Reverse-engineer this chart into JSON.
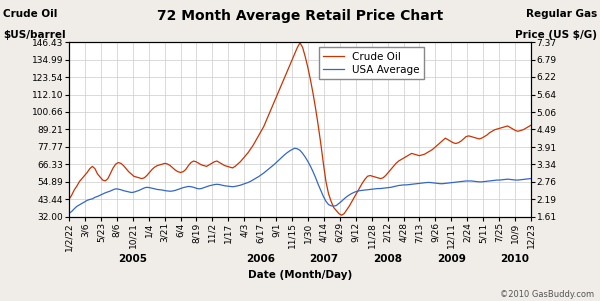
{
  "title": "72 Month Average Retail Price Chart",
  "left_ylabel_line1": "Crude Oil",
  "left_ylabel_line2": "$US/barrel",
  "right_ylabel_line1": "Regular Gas",
  "right_ylabel_line2": "Price (US $/G)",
  "xlabel": "Date (Month/Day)",
  "copyright": "©2010 GasBuddy.com",
  "left_yticks": [
    32.0,
    43.44,
    54.89,
    66.33,
    77.77,
    89.21,
    100.66,
    112.1,
    123.54,
    134.99,
    146.43
  ],
  "right_yticks": [
    1.61,
    2.19,
    2.76,
    3.34,
    3.91,
    4.49,
    5.06,
    5.64,
    6.22,
    6.79,
    7.37
  ],
  "xtick_labels": [
    "1/2/22",
    "3/6",
    "5/23",
    "8/6",
    "10/21",
    "1/4",
    "3/21",
    "6/4",
    "8/19",
    "11/2",
    "1/17",
    "4/3",
    "6/17",
    "9/1",
    "11/15",
    "1/30",
    "4/14",
    "6/29",
    "9/12",
    "11/28",
    "2/12",
    "4/28",
    "7/13",
    "9/26",
    "12/11",
    "2/24",
    "5/11",
    "7/25",
    "10/9",
    "12/23"
  ],
  "year_labels": [
    "2005",
    "2006",
    "2007",
    "2008",
    "2009",
    "2010"
  ],
  "year_tick_ranges": [
    [
      1,
      9
    ],
    [
      9,
      15
    ],
    [
      15,
      19
    ],
    [
      19,
      23
    ],
    [
      23,
      27
    ],
    [
      27,
      30
    ]
  ],
  "crude_color": "#cc3300",
  "gas_color": "#3366cc",
  "bg_color": "#f0ede8",
  "plot_bg": "#ffffff",
  "grid_color": "#cccccc",
  "title_fontsize": 10,
  "axis_label_fontsize": 7.5,
  "tick_fontsize": 6.5,
  "legend_fontsize": 7.5,
  "crude_data": [
    43.5,
    46.0,
    49.5,
    52.0,
    55.0,
    57.0,
    59.0,
    61.0,
    63.5,
    65.0,
    63.5,
    60.0,
    58.0,
    56.0,
    55.5,
    57.0,
    60.5,
    64.0,
    66.5,
    67.5,
    67.0,
    65.5,
    63.5,
    61.5,
    60.0,
    58.5,
    58.0,
    57.5,
    57.0,
    57.5,
    59.0,
    61.0,
    63.0,
    64.5,
    65.5,
    66.0,
    66.5,
    67.0,
    66.5,
    65.5,
    64.0,
    62.5,
    61.5,
    61.0,
    61.5,
    63.0,
    65.5,
    67.5,
    68.5,
    68.0,
    67.0,
    66.0,
    65.5,
    65.0,
    66.0,
    67.0,
    68.0,
    68.5,
    67.5,
    66.5,
    65.5,
    65.0,
    64.5,
    64.0,
    65.0,
    66.5,
    68.0,
    70.0,
    72.0,
    74.0,
    76.5,
    79.0,
    82.0,
    85.0,
    88.0,
    91.0,
    95.0,
    99.0,
    103.0,
    107.0,
    111.0,
    115.0,
    119.0,
    123.0,
    127.0,
    131.0,
    135.0,
    139.0,
    143.0,
    146.0,
    143.0,
    137.0,
    130.0,
    122.0,
    113.0,
    103.0,
    92.0,
    80.0,
    67.0,
    55.0,
    47.0,
    42.0,
    38.0,
    36.0,
    34.0,
    33.0,
    34.0,
    36.5,
    39.0,
    42.0,
    45.0,
    48.0,
    51.0,
    54.0,
    56.5,
    58.5,
    59.0,
    58.5,
    58.0,
    57.5,
    57.0,
    57.5,
    59.0,
    61.0,
    63.0,
    65.0,
    67.0,
    68.5,
    69.5,
    70.5,
    71.5,
    72.5,
    73.5,
    73.0,
    72.5,
    72.0,
    72.5,
    73.0,
    74.0,
    75.0,
    76.0,
    77.5,
    79.0,
    80.5,
    82.0,
    83.5,
    82.5,
    81.5,
    80.5,
    80.0,
    80.5,
    81.5,
    83.0,
    84.5,
    85.0,
    84.5,
    84.0,
    83.5,
    83.0,
    83.5,
    84.5,
    85.5,
    87.0,
    88.0,
    89.0,
    89.5,
    90.0,
    90.5,
    91.0,
    91.5,
    90.5,
    89.5,
    88.5,
    88.0,
    88.5,
    89.0,
    90.0,
    91.0,
    92.0
  ],
  "gas_data": [
    1.72,
    1.78,
    1.87,
    1.95,
    2.0,
    2.05,
    2.1,
    2.15,
    2.18,
    2.2,
    2.25,
    2.28,
    2.32,
    2.36,
    2.4,
    2.43,
    2.46,
    2.5,
    2.53,
    2.52,
    2.5,
    2.47,
    2.45,
    2.43,
    2.41,
    2.42,
    2.45,
    2.48,
    2.52,
    2.56,
    2.58,
    2.57,
    2.55,
    2.53,
    2.51,
    2.5,
    2.49,
    2.47,
    2.46,
    2.45,
    2.46,
    2.48,
    2.51,
    2.54,
    2.57,
    2.59,
    2.61,
    2.6,
    2.58,
    2.55,
    2.53,
    2.54,
    2.57,
    2.6,
    2.63,
    2.65,
    2.67,
    2.68,
    2.67,
    2.65,
    2.63,
    2.62,
    2.61,
    2.6,
    2.61,
    2.63,
    2.65,
    2.68,
    2.71,
    2.74,
    2.78,
    2.83,
    2.88,
    2.93,
    2.99,
    3.05,
    3.12,
    3.19,
    3.26,
    3.33,
    3.41,
    3.49,
    3.57,
    3.65,
    3.72,
    3.78,
    3.83,
    3.87,
    3.85,
    3.8,
    3.7,
    3.58,
    3.44,
    3.28,
    3.1,
    2.9,
    2.68,
    2.48,
    2.28,
    2.12,
    2.01,
    1.97,
    1.96,
    1.98,
    2.05,
    2.12,
    2.2,
    2.27,
    2.33,
    2.38,
    2.42,
    2.45,
    2.47,
    2.48,
    2.49,
    2.5,
    2.51,
    2.52,
    2.53,
    2.54,
    2.54,
    2.55,
    2.56,
    2.57,
    2.58,
    2.6,
    2.62,
    2.64,
    2.65,
    2.66,
    2.66,
    2.67,
    2.68,
    2.69,
    2.7,
    2.71,
    2.72,
    2.73,
    2.74,
    2.74,
    2.73,
    2.72,
    2.71,
    2.7,
    2.7,
    2.71,
    2.72,
    2.73,
    2.74,
    2.75,
    2.76,
    2.77,
    2.78,
    2.79,
    2.79,
    2.79,
    2.78,
    2.77,
    2.76,
    2.76,
    2.77,
    2.78,
    2.79,
    2.8,
    2.81,
    2.82,
    2.82,
    2.83,
    2.84,
    2.85,
    2.84,
    2.83,
    2.82,
    2.82,
    2.83,
    2.84,
    2.85,
    2.86,
    2.87
  ]
}
